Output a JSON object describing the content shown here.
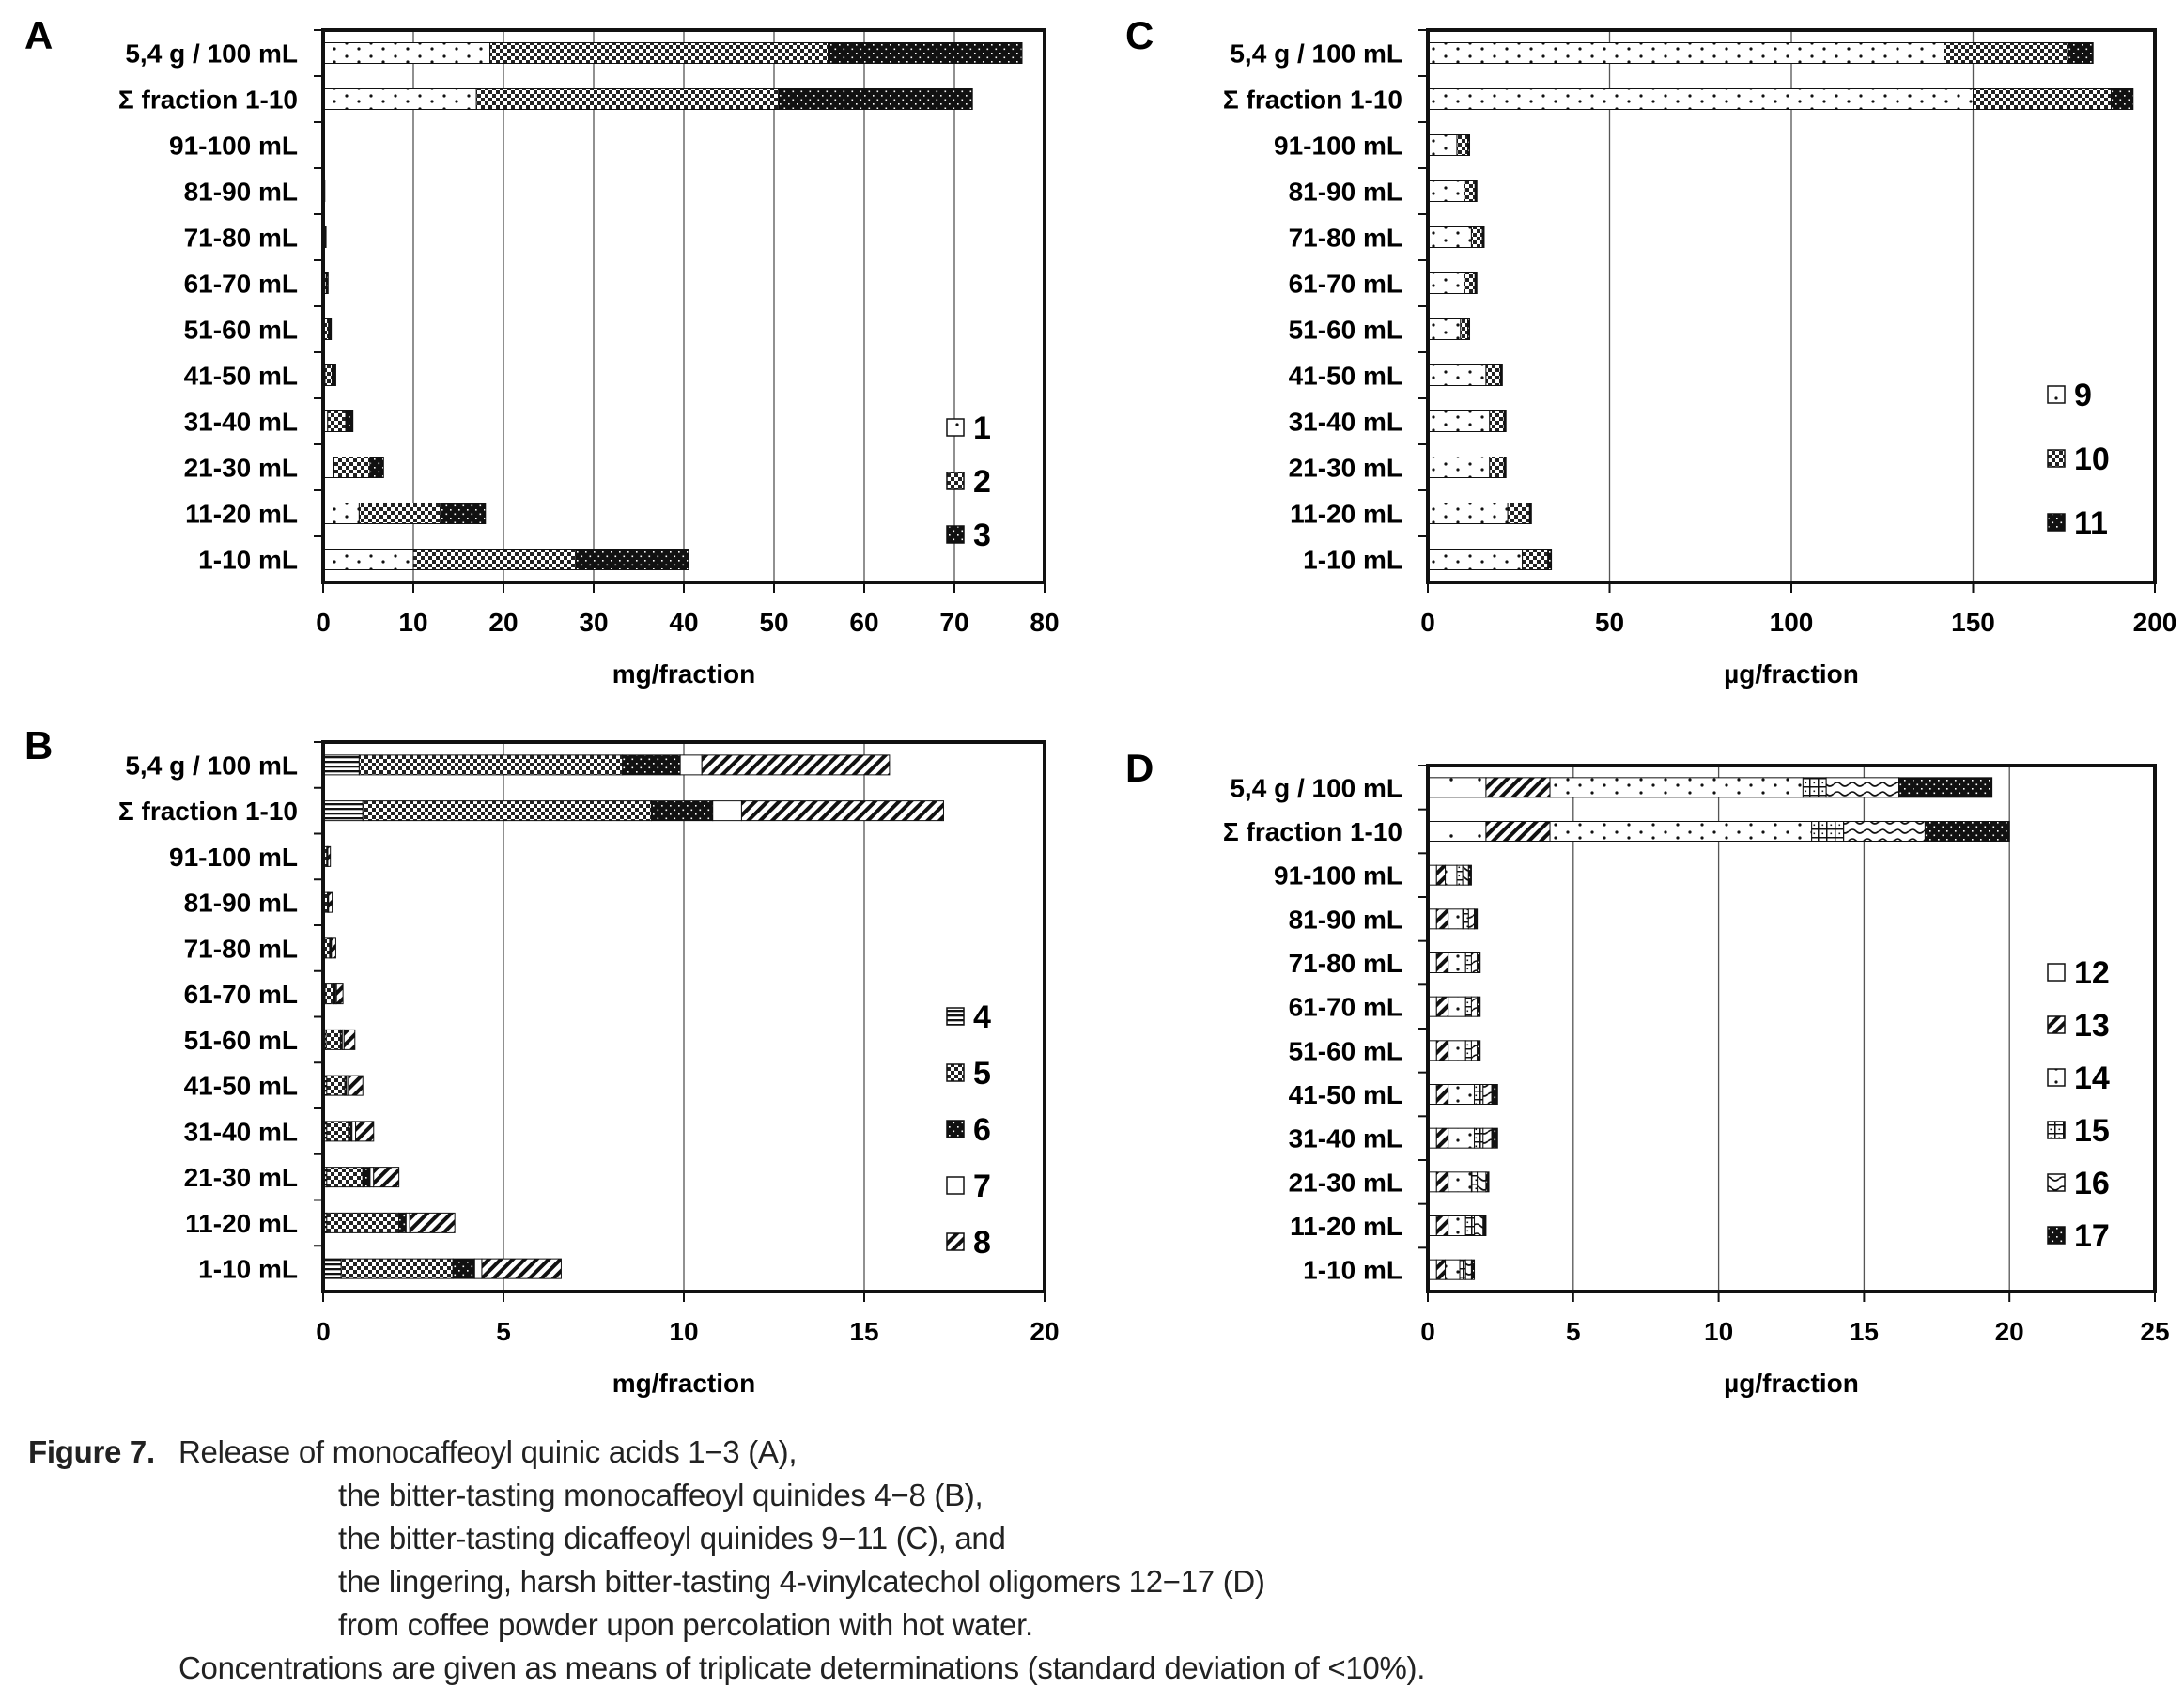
{
  "figure_label": "Figure 7.",
  "caption": {
    "line1": "Release of monocaffeoyl quinic acids 1−3 (A),",
    "line2": "the bitter-tasting monocaffeoyl quinides 4−8 (B),",
    "line3": "the bitter-tasting dicaffeoyl quinides 9−11 (C), and",
    "line4": "the lingering, harsh bitter-tasting 4-vinylcatechol oligomers 12−17 (D)",
    "line5": "from coffee powder upon percolation with hot water.",
    "line6": "Concentrations are given as means of triplicate determinations (standard deviation of <10%)."
  },
  "colors": {
    "ink": "#111111",
    "grid": "#555555",
    "frame": "#111111"
  },
  "chart_data": [
    {
      "id": "A",
      "panel_label": "A",
      "type": "bar",
      "orientation": "horizontal",
      "stacked": true,
      "categories": [
        "5,4 g / 100 mL",
        "Σ fraction 1-10",
        "91-100 mL",
        "81-90 mL",
        "71-80 mL",
        "61-70 mL",
        "51-60 mL",
        "41-50 mL",
        "31-40 mL",
        "21-30 mL",
        "11-20 mL",
        "1-10 mL"
      ],
      "series": [
        {
          "name": "1",
          "pattern": "dots",
          "values": [
            18.5,
            17,
            0,
            0,
            0.02,
            0.05,
            0.1,
            0.2,
            0.5,
            1.2,
            4,
            10
          ]
        },
        {
          "name": "2",
          "pattern": "checker",
          "values": [
            37.5,
            33.5,
            0.05,
            0.1,
            0.2,
            0.3,
            0.5,
            0.8,
            2,
            4,
            9,
            18
          ]
        },
        {
          "name": "3",
          "pattern": "dark",
          "values": [
            21.5,
            21.5,
            0.05,
            0.05,
            0.1,
            0.2,
            0.3,
            0.4,
            0.8,
            1.5,
            5,
            12.5
          ]
        }
      ],
      "xlim": [
        0,
        80
      ],
      "xticks": [
        0,
        10,
        20,
        30,
        40,
        50,
        60,
        70,
        80
      ],
      "xlabel": "mg/fraction",
      "grid": true,
      "legend_position": "bottom-right"
    },
    {
      "id": "B",
      "panel_label": "B",
      "type": "bar",
      "orientation": "horizontal",
      "stacked": true,
      "categories": [
        "5,4 g / 100 mL",
        "Σ fraction 1-10",
        "91-100 mL",
        "81-90 mL",
        "71-80 mL",
        "61-70 mL",
        "51-60 mL",
        "41-50 mL",
        "31-40 mL",
        "21-30 mL",
        "11-20 mL",
        "1-10 mL"
      ],
      "series": [
        {
          "name": "4",
          "pattern": "hlines",
          "values": [
            1,
            1.1,
            0.02,
            0.02,
            0.03,
            0.05,
            0.08,
            0.1,
            0.1,
            0.1,
            0.1,
            0.5
          ]
        },
        {
          "name": "5",
          "pattern": "checker",
          "values": [
            7.3,
            8,
            0.08,
            0.1,
            0.15,
            0.25,
            0.4,
            0.5,
            0.6,
            1,
            2,
            3.1
          ]
        },
        {
          "name": "6",
          "pattern": "dark",
          "values": [
            1.6,
            1.7,
            0.02,
            0.02,
            0.03,
            0.04,
            0.05,
            0.05,
            0.1,
            0.2,
            0.2,
            0.6
          ]
        },
        {
          "name": "7",
          "pattern": "white",
          "values": [
            0.6,
            0.8,
            0.01,
            0.01,
            0.02,
            0.03,
            0.05,
            0.05,
            0.1,
            0.1,
            0.1,
            0.2
          ]
        },
        {
          "name": "8",
          "pattern": "diag",
          "values": [
            5.2,
            5.6,
            0.07,
            0.1,
            0.12,
            0.18,
            0.3,
            0.4,
            0.5,
            0.7,
            1.25,
            2.2
          ]
        }
      ],
      "xlim": [
        0,
        20
      ],
      "xticks": [
        0,
        5,
        10,
        15,
        20
      ],
      "xlabel": "mg/fraction",
      "grid": true,
      "legend_position": "right"
    },
    {
      "id": "C",
      "panel_label": "C",
      "type": "bar",
      "orientation": "horizontal",
      "stacked": true,
      "categories": [
        "5,4 g / 100 mL",
        "Σ fraction 1-10",
        "91-100 mL",
        "81-90 mL",
        "71-80 mL",
        "61-70 mL",
        "51-60 mL",
        "41-50 mL",
        "31-40 mL",
        "21-30 mL",
        "11-20 mL",
        "1-10 mL"
      ],
      "series": [
        {
          "name": "9",
          "pattern": "dots",
          "values": [
            142,
            150,
            8,
            10,
            12,
            10,
            9,
            16,
            17,
            17,
            22,
            26
          ]
        },
        {
          "name": "10",
          "pattern": "checker",
          "values": [
            34,
            38,
            3,
            3,
            3,
            3,
            2,
            4,
            4,
            4,
            6,
            7
          ]
        },
        {
          "name": "11",
          "pattern": "dark",
          "values": [
            7,
            6,
            0.5,
            0.5,
            0.5,
            0.5,
            0.5,
            0.5,
            0.5,
            0.5,
            0.5,
            1
          ]
        }
      ],
      "xlim": [
        0,
        200
      ],
      "xticks": [
        0,
        50,
        100,
        150,
        200
      ],
      "xlabel": "µg/fraction",
      "grid": true,
      "legend_position": "right"
    },
    {
      "id": "D",
      "panel_label": "D",
      "type": "bar",
      "orientation": "horizontal",
      "stacked": true,
      "categories": [
        "5,4 g / 100 mL",
        "Σ fraction 1-10",
        "91-100 mL",
        "81-90 mL",
        "71-80 mL",
        "61-70 mL",
        "51-60 mL",
        "41-50 mL",
        "31-40 mL",
        "21-30 mL",
        "11-20 mL",
        "1-10 mL"
      ],
      "series": [
        {
          "name": "12",
          "pattern": "sparse",
          "values": [
            2,
            2,
            0.3,
            0.3,
            0.3,
            0.3,
            0.3,
            0.3,
            0.3,
            0.3,
            0.3,
            0.3
          ]
        },
        {
          "name": "13",
          "pattern": "diag",
          "values": [
            2.2,
            2.2,
            0.3,
            0.4,
            0.4,
            0.4,
            0.4,
            0.4,
            0.4,
            0.4,
            0.4,
            0.3
          ]
        },
        {
          "name": "14",
          "pattern": "dots",
          "values": [
            8.7,
            9,
            0.4,
            0.5,
            0.6,
            0.6,
            0.6,
            0.9,
            0.9,
            0.8,
            0.6,
            0.5
          ]
        },
        {
          "name": "15",
          "pattern": "grid",
          "values": [
            0.8,
            1.1,
            0.2,
            0.2,
            0.2,
            0.2,
            0.2,
            0.3,
            0.3,
            0.2,
            0.3,
            0.2
          ]
        },
        {
          "name": "16",
          "pattern": "wave",
          "values": [
            2.5,
            2.8,
            0.2,
            0.2,
            0.2,
            0.2,
            0.2,
            0.3,
            0.3,
            0.3,
            0.3,
            0.2
          ]
        },
        {
          "name": "17",
          "pattern": "dark",
          "values": [
            3.2,
            2.9,
            0.1,
            0.1,
            0.1,
            0.1,
            0.1,
            0.2,
            0.2,
            0.1,
            0.1,
            0.1
          ]
        }
      ],
      "xlim": [
        0,
        25
      ],
      "xticks": [
        0,
        5,
        10,
        15,
        20,
        25
      ],
      "xlabel": "µg/fraction",
      "grid": true,
      "legend_position": "right"
    }
  ]
}
